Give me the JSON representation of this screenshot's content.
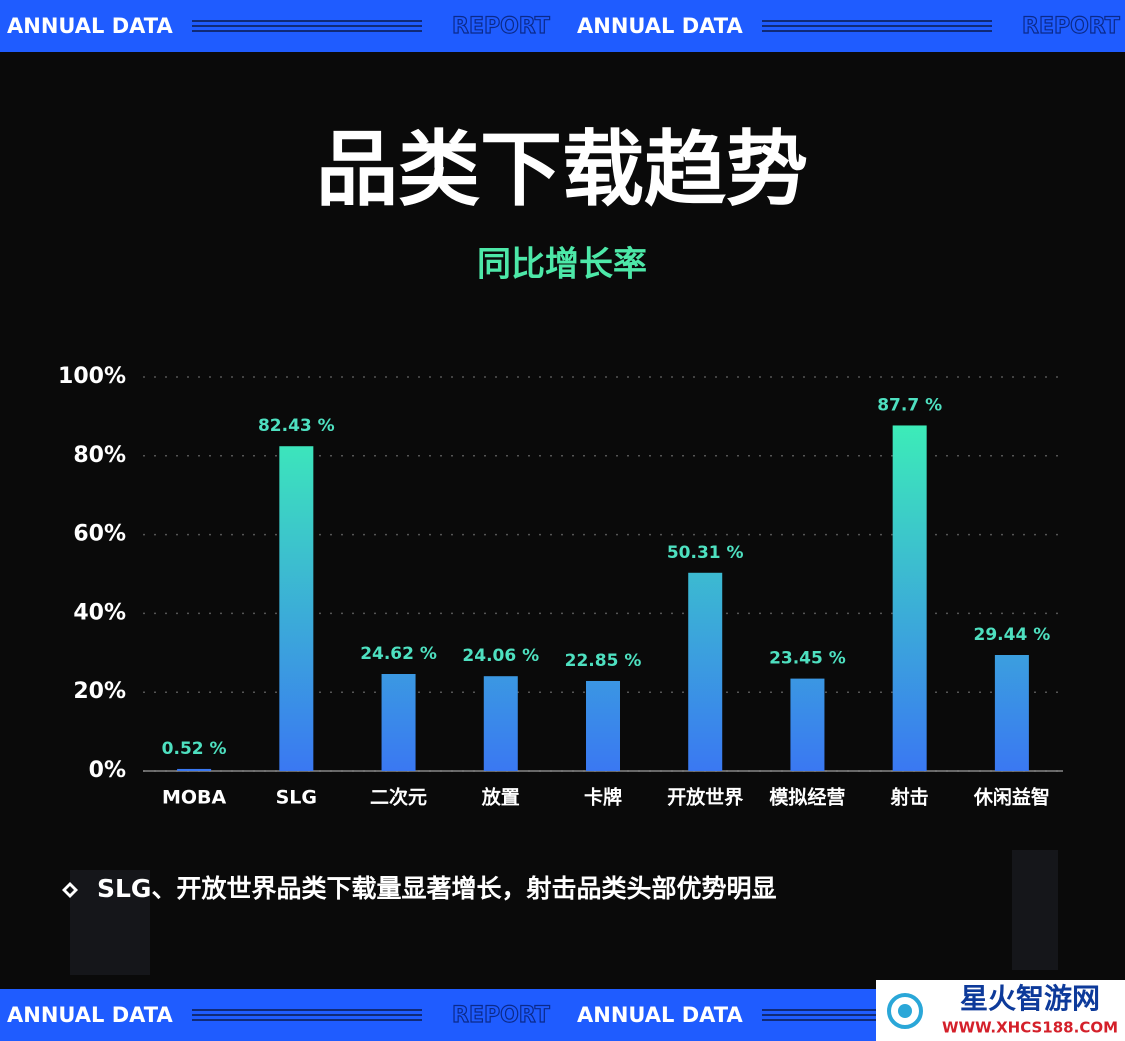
{
  "banner": {
    "left": "ANNUAL DATA",
    "right": "REPORT"
  },
  "chart_data": {
    "type": "bar",
    "title": "品类下载趋势",
    "subtitle": "同比增长率",
    "categories": [
      "MOBA",
      "SLG",
      "二次元",
      "放置",
      "卡牌",
      "开放世界",
      "模拟经营",
      "射击",
      "休闲益智"
    ],
    "values": [
      0.52,
      82.43,
      24.62,
      24.06,
      22.85,
      50.31,
      23.45,
      87.7,
      29.44
    ],
    "value_labels": [
      "0.52 %",
      "82.43 %",
      "24.62 %",
      "24.06 %",
      "22.85 %",
      "50.31 %",
      "23.45 %",
      "87.7 %",
      "29.44 %"
    ],
    "colors": [
      "#3dfcb0",
      "#3a78f2"
    ],
    "ylim": [
      0,
      100
    ],
    "yticks": [
      {
        "value": 0,
        "label": "0%"
      },
      {
        "value": 20,
        "label": "20%"
      },
      {
        "value": 40,
        "label": "40%"
      },
      {
        "value": 60,
        "label": "60%"
      },
      {
        "value": 80,
        "label": "80%"
      },
      {
        "value": 100,
        "label": "100%"
      }
    ],
    "grid": true,
    "annotation": "SLG、开放世界品类下载量显著增长，射击品类头部优势明显"
  },
  "watermark": {
    "name": "星火智游网",
    "url": "WWW.XHCS188.COM"
  }
}
